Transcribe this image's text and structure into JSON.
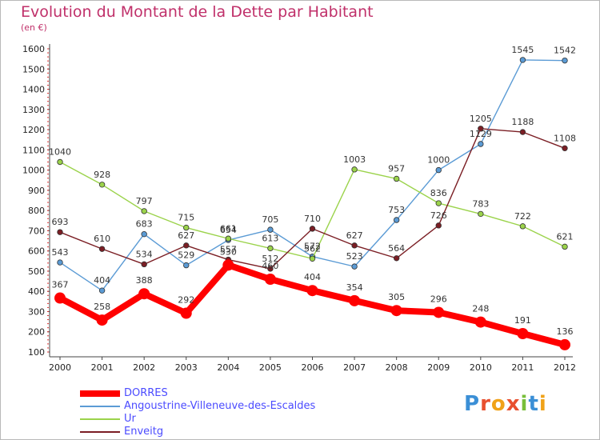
{
  "title": "Evolution du Montant de la Dette par Habitant",
  "unit": "(en €)",
  "logo": "Proxiti",
  "chart_data": {
    "type": "line",
    "x": [
      "2000",
      "2001",
      "2002",
      "2003",
      "2004",
      "2005",
      "2006",
      "2007",
      "2008",
      "2009",
      "2010",
      "2011",
      "2012"
    ],
    "ylim": [
      100,
      1600
    ],
    "yticks": [
      100,
      200,
      300,
      400,
      500,
      600,
      700,
      800,
      900,
      1000,
      1100,
      1200,
      1300,
      1400,
      1500,
      1600
    ],
    "grid": false,
    "legend_position": "bottom-left",
    "series": [
      {
        "name": "DORRES",
        "color": "#ff0000",
        "values": [
          367,
          258,
          388,
          292,
          530,
          460,
          404,
          354,
          305,
          296,
          248,
          191,
          136
        ],
        "labels": [
          "367",
          "258",
          "388",
          "292",
          "530",
          "460",
          "404",
          "354",
          "305",
          "296",
          "248",
          "191",
          "136"
        ]
      },
      {
        "name": "Angoustrine-Villeneuve-des-Escaldes",
        "color": "#5b9bd5",
        "values": [
          543,
          404,
          683,
          529,
          654,
          705,
          572,
          523,
          753,
          1000,
          1129,
          1545,
          1542
        ],
        "labels": [
          "543",
          "404",
          "683",
          "529",
          "654",
          "705",
          "572",
          "523",
          "753",
          "1000",
          "1129",
          "1545",
          "1542"
        ]
      },
      {
        "name": "Ur",
        "color": "#9bd34b",
        "values": [
          1040,
          928,
          797,
          715,
          661,
          613,
          562,
          1003,
          957,
          836,
          783,
          722,
          621
        ],
        "labels": [
          "1040",
          "928",
          "797",
          "715",
          "661",
          "613",
          "562",
          "1003",
          "957",
          "836",
          "783",
          "722",
          "621"
        ]
      },
      {
        "name": "Enveitg",
        "color": "#7b1e24",
        "values": [
          693,
          610,
          534,
          627,
          557,
          512,
          710,
          627,
          564,
          726,
          1205,
          1188,
          1108
        ],
        "labels": [
          "693",
          "610",
          "534",
          "627",
          "557",
          "512",
          "710",
          "627",
          "564",
          "726",
          "1205",
          "1188",
          "1108"
        ]
      }
    ]
  }
}
